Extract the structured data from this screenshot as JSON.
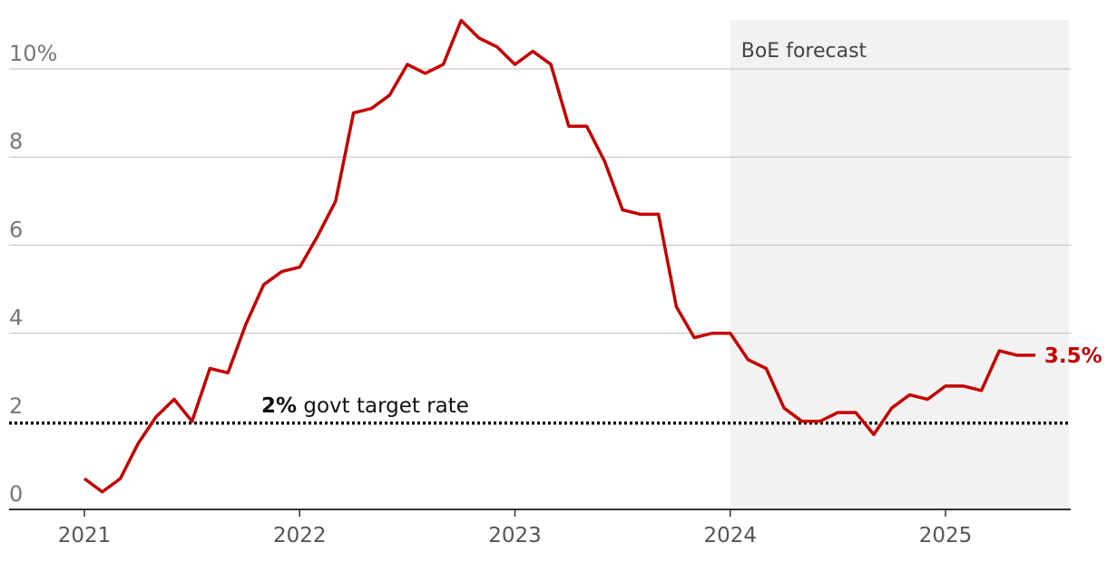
{
  "chart_data": {
    "type": "line",
    "title": "",
    "xlabel": "",
    "ylabel": "",
    "ylim": [
      0,
      11.2
    ],
    "xlim": [
      2021.0,
      2025.6
    ],
    "y_ticks": [
      {
        "value": 0,
        "label": "0"
      },
      {
        "value": 2,
        "label": "2"
      },
      {
        "value": 4,
        "label": "4"
      },
      {
        "value": 6,
        "label": "6"
      },
      {
        "value": 8,
        "label": "8"
      },
      {
        "value": 10,
        "label": "10%"
      }
    ],
    "x_ticks": [
      {
        "value": 2021,
        "label": "2021"
      },
      {
        "value": 2022,
        "label": "2022"
      },
      {
        "value": 2023,
        "label": "2023"
      },
      {
        "value": 2024,
        "label": "2024"
      },
      {
        "value": 2025,
        "label": "2025"
      }
    ],
    "grid": true,
    "forecast_region": {
      "start": 2024.0,
      "end": 2025.6,
      "label": "BoE forecast",
      "color": "#f2f2f2"
    },
    "reference_line": {
      "value": 2,
      "label_bold": "2%",
      "label_rest": " govt target rate",
      "color": "#111111"
    },
    "series": [
      {
        "color": "#c70000",
        "end_label": "3.5%",
        "x": [
          2021.0,
          2021.083,
          2021.167,
          2021.25,
          2021.333,
          2021.417,
          2021.5,
          2021.583,
          2021.667,
          2021.75,
          2021.833,
          2021.917,
          2022.0,
          2022.083,
          2022.167,
          2022.25,
          2022.333,
          2022.417,
          2022.5,
          2022.583,
          2022.667,
          2022.75,
          2022.833,
          2022.917,
          2023.0,
          2023.083,
          2023.167,
          2023.25,
          2023.333,
          2023.417,
          2023.5,
          2023.583,
          2023.667,
          2023.75,
          2023.833,
          2023.917,
          2024.0,
          2024.083,
          2024.167,
          2024.25,
          2024.333,
          2024.417,
          2024.5,
          2024.583,
          2024.667,
          2024.75,
          2024.833,
          2024.917,
          2025.0,
          2025.083,
          2025.167,
          2025.25,
          2025.333,
          2025.417
        ],
        "values": [
          0.7,
          0.4,
          0.7,
          1.5,
          2.1,
          2.5,
          2.0,
          3.2,
          3.1,
          4.2,
          5.1,
          5.4,
          5.5,
          6.2,
          7.0,
          9.0,
          9.1,
          9.4,
          10.1,
          9.9,
          10.1,
          11.1,
          10.7,
          10.5,
          10.1,
          10.4,
          10.1,
          8.7,
          8.7,
          7.9,
          6.8,
          6.7,
          6.7,
          4.6,
          3.9,
          4.0,
          4.0,
          3.4,
          3.2,
          2.3,
          2.0,
          2.0,
          2.2,
          2.2,
          1.7,
          2.3,
          2.6,
          2.5,
          2.8,
          2.8,
          2.7,
          3.6,
          3.5,
          3.5
        ]
      }
    ]
  }
}
